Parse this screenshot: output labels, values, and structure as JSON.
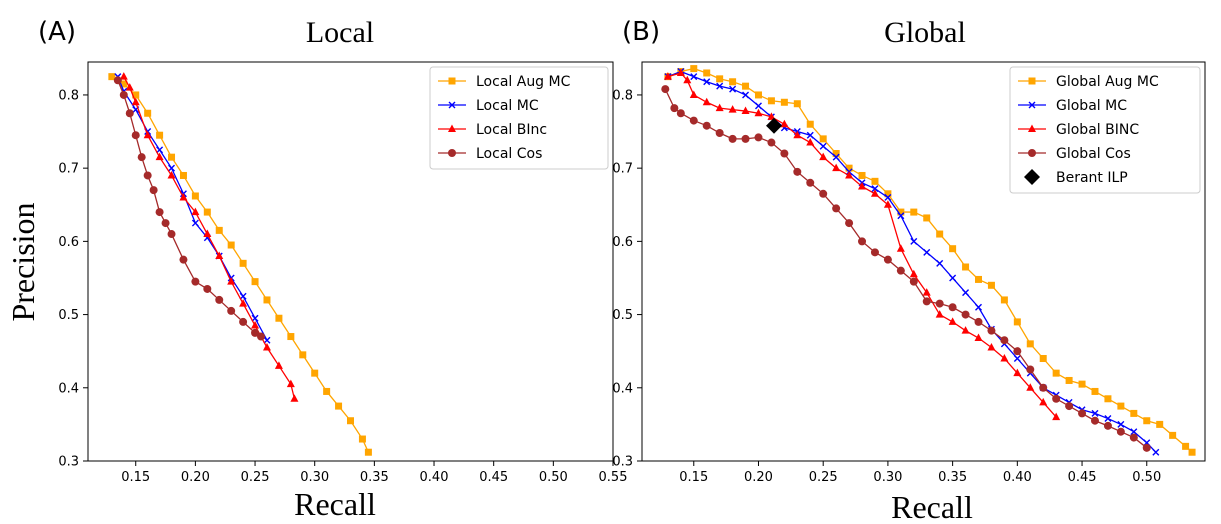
{
  "chart_data": [
    {
      "type": "line",
      "panel_label": "(A)",
      "title": "Local",
      "xlabel": "Recall",
      "ylabel": "Precision",
      "xlim": [
        0.11,
        0.55
      ],
      "ylim": [
        0.3,
        0.845
      ],
      "xticks": [
        0.15,
        0.2,
        0.25,
        0.3,
        0.35,
        0.4,
        0.45,
        0.5,
        0.55
      ],
      "xtick_labels": [
        "0.15",
        "0.20",
        "0.25",
        "0.30",
        "0.35",
        "0.40",
        "0.45",
        "0.50",
        "0.55"
      ],
      "yticks": [
        0.3,
        0.4,
        0.5,
        0.6,
        0.7,
        0.8
      ],
      "ytick_labels": [
        "0.3",
        "0.4",
        "0.5",
        "0.6",
        "0.7",
        "0.8"
      ],
      "legend_position": "top-right",
      "series": [
        {
          "name": "Local Aug MC",
          "color": "#FFA500",
          "marker": "square",
          "x": [
            0.13,
            0.14,
            0.15,
            0.16,
            0.17,
            0.18,
            0.19,
            0.2,
            0.21,
            0.22,
            0.23,
            0.24,
            0.25,
            0.26,
            0.27,
            0.28,
            0.29,
            0.3,
            0.31,
            0.32,
            0.33,
            0.34,
            0.345
          ],
          "y": [
            0.825,
            0.815,
            0.8,
            0.775,
            0.745,
            0.715,
            0.69,
            0.662,
            0.64,
            0.615,
            0.595,
            0.57,
            0.545,
            0.52,
            0.495,
            0.47,
            0.445,
            0.42,
            0.395,
            0.375,
            0.355,
            0.33,
            0.312
          ]
        },
        {
          "name": "Local MC",
          "color": "#0000FF",
          "marker": "x",
          "x": [
            0.135,
            0.14,
            0.15,
            0.16,
            0.17,
            0.18,
            0.19,
            0.2,
            0.21,
            0.22,
            0.23,
            0.24,
            0.25,
            0.26
          ],
          "y": [
            0.825,
            0.805,
            0.78,
            0.75,
            0.725,
            0.7,
            0.665,
            0.625,
            0.605,
            0.58,
            0.55,
            0.525,
            0.495,
            0.465
          ]
        },
        {
          "name": "Local BInc",
          "color": "#FF0000",
          "marker": "triangle",
          "x": [
            0.14,
            0.145,
            0.15,
            0.16,
            0.17,
            0.18,
            0.19,
            0.2,
            0.21,
            0.22,
            0.23,
            0.24,
            0.25,
            0.26,
            0.27,
            0.28,
            0.283
          ],
          "y": [
            0.825,
            0.81,
            0.79,
            0.745,
            0.715,
            0.69,
            0.66,
            0.64,
            0.61,
            0.58,
            0.545,
            0.515,
            0.485,
            0.455,
            0.43,
            0.405,
            0.385
          ]
        },
        {
          "name": "Local Cos",
          "color": "#A52A2A",
          "marker": "circle",
          "x": [
            0.135,
            0.14,
            0.145,
            0.15,
            0.155,
            0.16,
            0.165,
            0.17,
            0.175,
            0.18,
            0.19,
            0.2,
            0.21,
            0.22,
            0.23,
            0.24,
            0.25,
            0.255
          ],
          "y": [
            0.82,
            0.8,
            0.775,
            0.745,
            0.715,
            0.69,
            0.67,
            0.64,
            0.625,
            0.61,
            0.575,
            0.545,
            0.535,
            0.52,
            0.505,
            0.49,
            0.475,
            0.47
          ]
        }
      ]
    },
    {
      "type": "line",
      "panel_label": "(B)",
      "title": "Global",
      "xlabel": "Recall",
      "xlim": [
        0.11,
        0.545
      ],
      "ylim": [
        0.3,
        0.845
      ],
      "xticks": [
        0.15,
        0.2,
        0.25,
        0.3,
        0.35,
        0.4,
        0.45,
        0.5
      ],
      "xtick_labels": [
        "0.15",
        "0.20",
        "0.25",
        "0.30",
        "0.35",
        "0.40",
        "0.45",
        "0.50"
      ],
      "yticks": [
        0.3,
        0.4,
        0.5,
        0.6,
        0.7,
        0.8
      ],
      "ytick_labels": [
        "0.3",
        "0.4",
        "0.5",
        "0.6",
        "0.7",
        "0.8"
      ],
      "legend_position": "top-right",
      "series": [
        {
          "name": "Global Aug MC",
          "color": "#FFA500",
          "marker": "square",
          "x": [
            0.13,
            0.14,
            0.15,
            0.16,
            0.17,
            0.18,
            0.19,
            0.2,
            0.21,
            0.22,
            0.23,
            0.24,
            0.25,
            0.26,
            0.27,
            0.28,
            0.29,
            0.3,
            0.31,
            0.32,
            0.33,
            0.34,
            0.35,
            0.36,
            0.37,
            0.38,
            0.39,
            0.4,
            0.41,
            0.42,
            0.43,
            0.44,
            0.45,
            0.46,
            0.47,
            0.48,
            0.49,
            0.5,
            0.51,
            0.52,
            0.53,
            0.535
          ],
          "y": [
            0.825,
            0.832,
            0.836,
            0.83,
            0.822,
            0.818,
            0.812,
            0.8,
            0.792,
            0.79,
            0.788,
            0.76,
            0.74,
            0.72,
            0.7,
            0.69,
            0.682,
            0.665,
            0.64,
            0.64,
            0.632,
            0.61,
            0.59,
            0.565,
            0.548,
            0.54,
            0.52,
            0.49,
            0.46,
            0.44,
            0.42,
            0.41,
            0.405,
            0.395,
            0.385,
            0.375,
            0.365,
            0.355,
            0.35,
            0.335,
            0.32,
            0.312
          ]
        },
        {
          "name": "Global MC",
          "color": "#0000FF",
          "marker": "x",
          "x": [
            0.13,
            0.14,
            0.15,
            0.16,
            0.17,
            0.18,
            0.19,
            0.2,
            0.21,
            0.22,
            0.23,
            0.24,
            0.25,
            0.26,
            0.27,
            0.28,
            0.29,
            0.3,
            0.31,
            0.32,
            0.33,
            0.34,
            0.35,
            0.36,
            0.37,
            0.38,
            0.39,
            0.4,
            0.41,
            0.42,
            0.43,
            0.44,
            0.45,
            0.46,
            0.47,
            0.48,
            0.49,
            0.5,
            0.507
          ],
          "y": [
            0.825,
            0.832,
            0.825,
            0.818,
            0.812,
            0.808,
            0.8,
            0.785,
            0.77,
            0.755,
            0.75,
            0.745,
            0.73,
            0.715,
            0.695,
            0.68,
            0.672,
            0.66,
            0.635,
            0.6,
            0.585,
            0.57,
            0.55,
            0.53,
            0.51,
            0.48,
            0.46,
            0.44,
            0.42,
            0.4,
            0.39,
            0.38,
            0.37,
            0.365,
            0.358,
            0.35,
            0.34,
            0.325,
            0.312
          ]
        },
        {
          "name": "Global BINC",
          "color": "#FF0000",
          "marker": "triangle",
          "x": [
            0.13,
            0.14,
            0.145,
            0.15,
            0.16,
            0.17,
            0.18,
            0.19,
            0.2,
            0.21,
            0.22,
            0.23,
            0.24,
            0.25,
            0.26,
            0.27,
            0.28,
            0.29,
            0.3,
            0.31,
            0.32,
            0.33,
            0.34,
            0.35,
            0.36,
            0.37,
            0.38,
            0.39,
            0.4,
            0.41,
            0.42,
            0.43
          ],
          "y": [
            0.825,
            0.83,
            0.82,
            0.8,
            0.79,
            0.782,
            0.78,
            0.778,
            0.775,
            0.77,
            0.76,
            0.745,
            0.735,
            0.715,
            0.7,
            0.69,
            0.675,
            0.665,
            0.65,
            0.59,
            0.555,
            0.53,
            0.5,
            0.49,
            0.478,
            0.468,
            0.455,
            0.44,
            0.42,
            0.4,
            0.38,
            0.36
          ]
        },
        {
          "name": "Global Cos",
          "color": "#A52A2A",
          "marker": "circle",
          "x": [
            0.128,
            0.135,
            0.14,
            0.15,
            0.16,
            0.17,
            0.18,
            0.19,
            0.2,
            0.21,
            0.22,
            0.23,
            0.24,
            0.25,
            0.26,
            0.27,
            0.28,
            0.29,
            0.3,
            0.31,
            0.32,
            0.33,
            0.34,
            0.35,
            0.36,
            0.37,
            0.38,
            0.39,
            0.4,
            0.41,
            0.42,
            0.43,
            0.44,
            0.45,
            0.46,
            0.47,
            0.48,
            0.49,
            0.5
          ],
          "y": [
            0.808,
            0.782,
            0.775,
            0.765,
            0.758,
            0.748,
            0.74,
            0.74,
            0.742,
            0.735,
            0.72,
            0.695,
            0.68,
            0.665,
            0.645,
            0.625,
            0.6,
            0.585,
            0.575,
            0.56,
            0.545,
            0.518,
            0.515,
            0.51,
            0.5,
            0.49,
            0.478,
            0.465,
            0.45,
            0.425,
            0.4,
            0.385,
            0.375,
            0.365,
            0.355,
            0.348,
            0.34,
            0.332,
            0.318
          ]
        },
        {
          "name": "Berant ILP",
          "color": "#000000",
          "marker": "diamond",
          "line": false,
          "x": [
            0.212
          ],
          "y": [
            0.758
          ]
        }
      ]
    }
  ]
}
